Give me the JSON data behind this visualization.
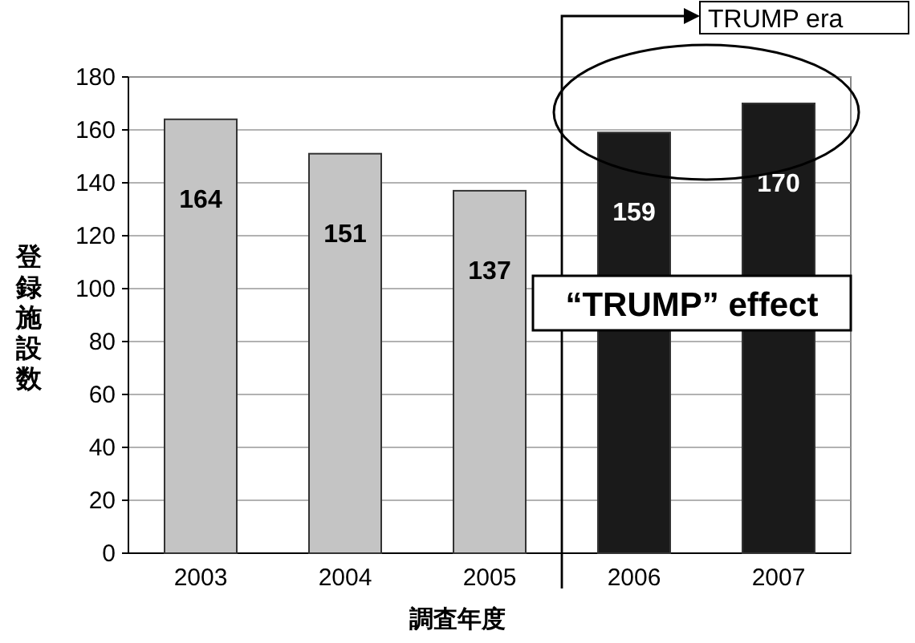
{
  "chart_data": {
    "type": "bar",
    "xlabel": "調査年度",
    "ylabel": "登録施設数",
    "categories": [
      "2003",
      "2004",
      "2005",
      "2006",
      "2007"
    ],
    "values": [
      164,
      151,
      137,
      159,
      170
    ],
    "colors": [
      "#c4c4c4",
      "#c4c4c4",
      "#c4c4c4",
      "#1a1a1a",
      "#1a1a1a"
    ],
    "ylim": [
      0,
      180
    ],
    "yticks": [
      0,
      20,
      40,
      60,
      80,
      100,
      120,
      140,
      160,
      180
    ],
    "grid": "y",
    "data_labels": true,
    "annotations": [
      "TRUMP era",
      "“TRUMP” effect"
    ]
  }
}
